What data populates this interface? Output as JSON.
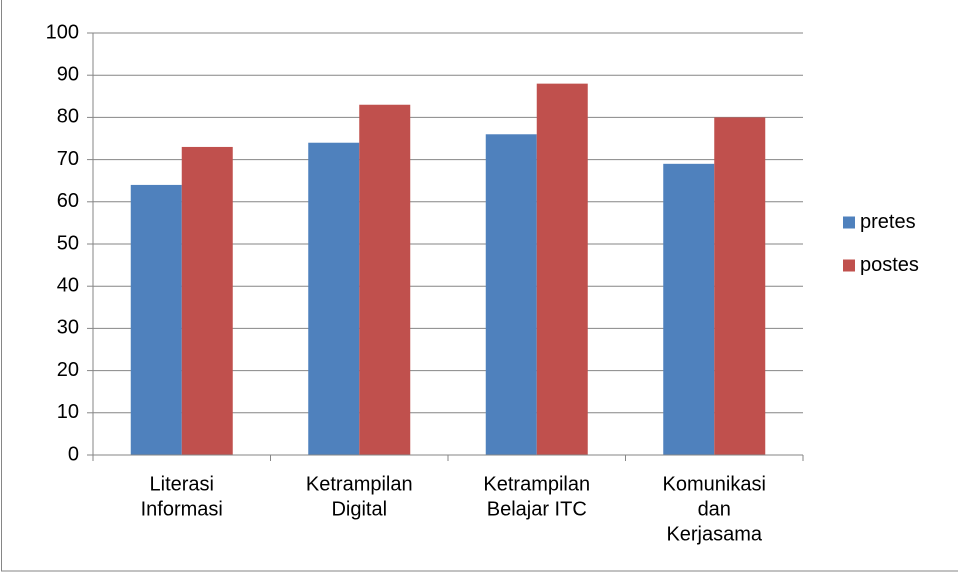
{
  "chart_data": {
    "type": "bar",
    "categories": [
      [
        "Literasi",
        "Informasi"
      ],
      [
        "Ketrampilan",
        "Digital"
      ],
      [
        "Ketrampilan",
        "Belajar ITC"
      ],
      [
        "Komunikasi",
        "dan",
        "Kerjasama"
      ]
    ],
    "series": [
      {
        "name": "pretes",
        "color": "#4f81bd",
        "values": [
          64,
          74,
          76,
          69
        ]
      },
      {
        "name": "postes",
        "color": "#c0504d",
        "values": [
          73,
          83,
          88,
          80
        ]
      }
    ],
    "ylim": [
      0,
      100
    ],
    "yticks": [
      0,
      10,
      20,
      30,
      40,
      50,
      60,
      70,
      80,
      90,
      100
    ],
    "grid": true,
    "legend": "right"
  }
}
